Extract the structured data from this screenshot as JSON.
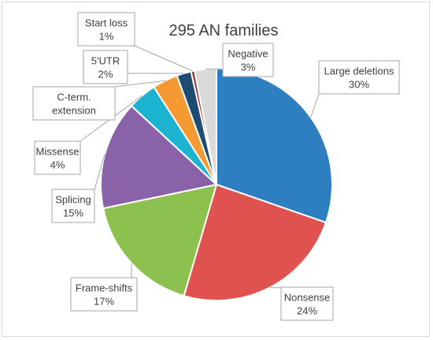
{
  "chart_data": {
    "type": "pie",
    "title": "295 AN families",
    "slices": [
      {
        "name": "Large deletions",
        "value": 30,
        "pct_label": "30%",
        "color": "#2e7fc1"
      },
      {
        "name": "Nonsense",
        "value": 24,
        "pct_label": "24%",
        "color": "#e05250"
      },
      {
        "name": "Frame-shifts",
        "value": 17,
        "pct_label": "17%",
        "color": "#8cc04f"
      },
      {
        "name": "Splicing",
        "value": 15,
        "pct_label": "15%",
        "color": "#8a62aa"
      },
      {
        "name": "Missense",
        "value": 4,
        "pct_label": "4%",
        "color": "#1bb3cf"
      },
      {
        "name": "C-term. extension",
        "value": 3.5,
        "pct_label": "",
        "color": "#f59a32"
      },
      {
        "name": "5'UTR",
        "value": 2,
        "pct_label": "2%",
        "color": "#1f4b72"
      },
      {
        "name": "Start loss",
        "value": 0.5,
        "pct_label": "1%",
        "color": "#a0302d"
      },
      {
        "name": "Negative",
        "value": 3,
        "pct_label": "3%",
        "color": "#d9d9d9"
      }
    ]
  }
}
